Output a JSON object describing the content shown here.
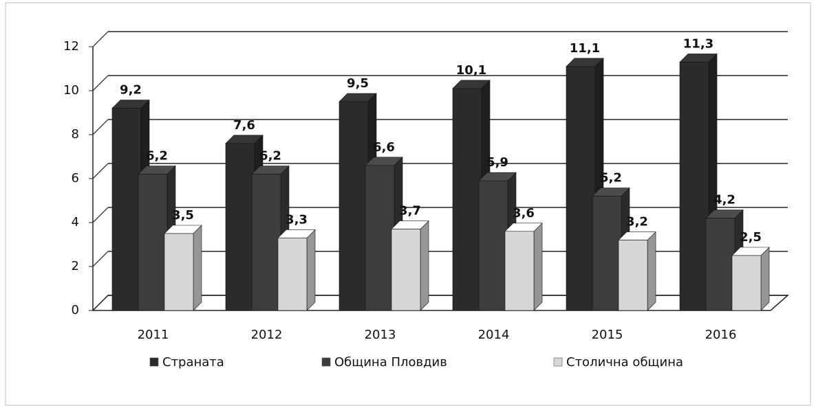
{
  "chart_data": {
    "type": "bar",
    "categories": [
      "2011",
      "2012",
      "2013",
      "2014",
      "2015",
      "2016"
    ],
    "series": [
      {
        "name": "Страната",
        "color": "#2b2b2b",
        "values": [
          9.2,
          7.6,
          9.5,
          10.1,
          11.1,
          11.3
        ],
        "value_labels": [
          "9,2",
          "7,6",
          "9,5",
          "10,1",
          "11,1",
          "11,3"
        ]
      },
      {
        "name": "Община Пловдив",
        "color": "#3d3d3d",
        "values": [
          6.2,
          6.2,
          6.6,
          5.9,
          5.2,
          4.2
        ],
        "value_labels": [
          "6,2",
          "6,2",
          "6,6",
          "5,9",
          "5,2",
          "4,2"
        ]
      },
      {
        "name": "Столична община",
        "color": "#d6d6d6",
        "values": [
          3.5,
          3.3,
          3.7,
          3.6,
          3.2,
          2.5
        ],
        "value_labels": [
          "3,5",
          "3,3",
          "3,7",
          "3,6",
          "3,2",
          "2,5"
        ]
      }
    ],
    "ylim": [
      0,
      12
    ],
    "yticks": [
      0,
      2,
      4,
      6,
      8,
      10,
      12
    ],
    "grid": true,
    "legend": "bottom"
  }
}
